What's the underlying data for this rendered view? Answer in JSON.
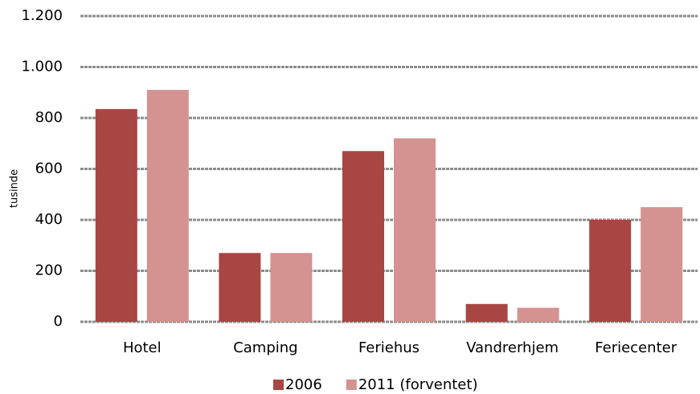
{
  "chart_data": {
    "type": "bar",
    "y_label": "tusinde",
    "categories": [
      "Hotel",
      "Camping",
      "Feriehus",
      "Vandrerhjem",
      "Feriecenter"
    ],
    "series": [
      {
        "name": "2006",
        "color": "#a84644",
        "values": [
          835,
          270,
          670,
          70,
          400
        ]
      },
      {
        "name": "2011 (forventet)",
        "color": "#d49290",
        "values": [
          910,
          270,
          720,
          55,
          450
        ]
      }
    ],
    "ylim": [
      0,
      1200
    ],
    "yticks": [
      0,
      200,
      400,
      600,
      800,
      {
        "value": 1000,
        "label": "1.000"
      },
      {
        "value": 1200,
        "label": "1.200"
      }
    ],
    "grid": true,
    "legend": "bottom"
  }
}
